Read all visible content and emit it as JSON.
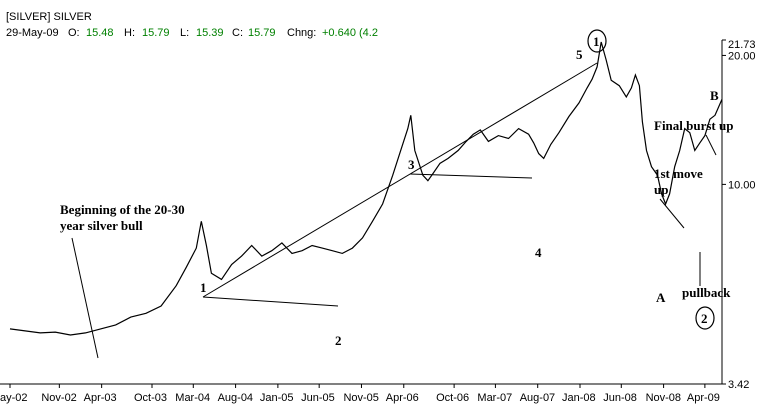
{
  "header": {
    "symbol": "[SILVER] SILVER",
    "date": "29-May-09",
    "open_label": "O:",
    "open_value": "15.48",
    "high_label": "H:",
    "high_value": "15.79",
    "low_label": "L:",
    "low_value": "15.39",
    "close_label": "C:",
    "close_value": "15.79",
    "change_label": "Chng:",
    "change_value": "+0.640 (4.2"
  },
  "colors": {
    "price_line": "#000000",
    "trendline": "#000000",
    "header_value": "#008000",
    "axis": "#000000"
  },
  "chart_data": {
    "type": "line",
    "title": "",
    "xlabel": "",
    "ylabel": "",
    "x_tick_labels": [
      "ay-02",
      "Nov-02",
      "Apr-03",
      "Oct-03",
      "Mar-04",
      "Aug-04",
      "Jan-05",
      "Jun-05",
      "Nov-05",
      "Apr-06",
      "Oct-06",
      "Mar-07",
      "Aug-07",
      "Jan-08",
      "Jun-08",
      "Nov-08",
      "Apr-09"
    ],
    "x_ticks": [
      2002.35,
      2002.84,
      2003.26,
      2003.76,
      2004.17,
      2004.59,
      2005.01,
      2005.42,
      2005.84,
      2006.26,
      2006.76,
      2007.17,
      2007.59,
      2008.01,
      2008.42,
      2008.84,
      2009.25
    ],
    "y_tick_labels": [
      "21.73",
      "20.00",
      "10.00",
      "3.42"
    ],
    "y_ticks": [
      21.73,
      20.0,
      10.0,
      3.42
    ],
    "y_scale": "log",
    "xlim": [
      2002.35,
      2009.42
    ],
    "ylim": [
      3.42,
      21.73
    ],
    "grid": false,
    "series": [
      {
        "x": [
          2002.35,
          2002.5,
          2002.65,
          2002.8,
          2002.95,
          2003.1,
          2003.25,
          2003.4,
          2003.55,
          2003.7,
          2003.85,
          2004.0,
          2004.1,
          2004.2,
          2004.25,
          2004.3,
          2004.35,
          2004.45,
          2004.55,
          2004.65,
          2004.75,
          2004.85,
          2004.95,
          2005.05,
          2005.15,
          2005.25,
          2005.35,
          2005.45,
          2005.55,
          2005.65,
          2005.75,
          2005.85,
          2005.95,
          2006.05,
          2006.15,
          2006.22,
          2006.3,
          2006.33,
          2006.37,
          2006.45,
          2006.5,
          2006.55,
          2006.62,
          2006.7,
          2006.8,
          2006.88,
          2006.95,
          2007.02,
          2007.1,
          2007.2,
          2007.3,
          2007.4,
          2007.5,
          2007.55,
          2007.6,
          2007.65,
          2007.72,
          2007.8,
          2007.9,
          2008.0,
          2008.08,
          2008.13,
          2008.18,
          2008.22,
          2008.27,
          2008.32,
          2008.4,
          2008.47,
          2008.52,
          2008.56,
          2008.6,
          2008.63,
          2008.67,
          2008.72,
          2008.78,
          2008.82,
          2008.86,
          2008.9,
          2008.95,
          2009.0,
          2009.05,
          2009.1,
          2009.15,
          2009.2,
          2009.25,
          2009.3,
          2009.35,
          2009.42
        ],
        "y": [
          4.6,
          4.55,
          4.5,
          4.52,
          4.45,
          4.5,
          4.6,
          4.7,
          4.9,
          5.0,
          5.2,
          5.8,
          6.4,
          7.1,
          8.2,
          7.2,
          6.2,
          6.0,
          6.5,
          6.8,
          7.2,
          6.8,
          7.0,
          7.3,
          6.9,
          7.0,
          7.2,
          7.1,
          7.0,
          6.9,
          7.1,
          7.5,
          8.2,
          9.0,
          10.5,
          11.8,
          13.5,
          14.5,
          12.0,
          10.5,
          10.2,
          10.6,
          11.2,
          11.5,
          12.0,
          12.6,
          13.1,
          13.4,
          12.6,
          13.0,
          12.8,
          13.5,
          13.1,
          12.5,
          11.8,
          11.5,
          12.4,
          13.2,
          14.4,
          15.5,
          16.8,
          17.6,
          18.8,
          21.5,
          19.5,
          17.5,
          17.0,
          16.0,
          16.8,
          18.0,
          17.0,
          14.0,
          12.0,
          11.0,
          10.5,
          9.5,
          9.0,
          9.5,
          11.0,
          12.0,
          13.5,
          13.2,
          12.0,
          12.5,
          13.0,
          14.2,
          14.5,
          15.8
        ]
      }
    ],
    "wave_labels": [
      "1",
      "2",
      "3",
      "4",
      "5",
      "A",
      "B"
    ],
    "circled_labels": [
      "1",
      "2"
    ],
    "annotations": [
      "Beginning of the 20-30 year silver bull",
      "Final burst up",
      "1st move up",
      "pullback"
    ]
  }
}
